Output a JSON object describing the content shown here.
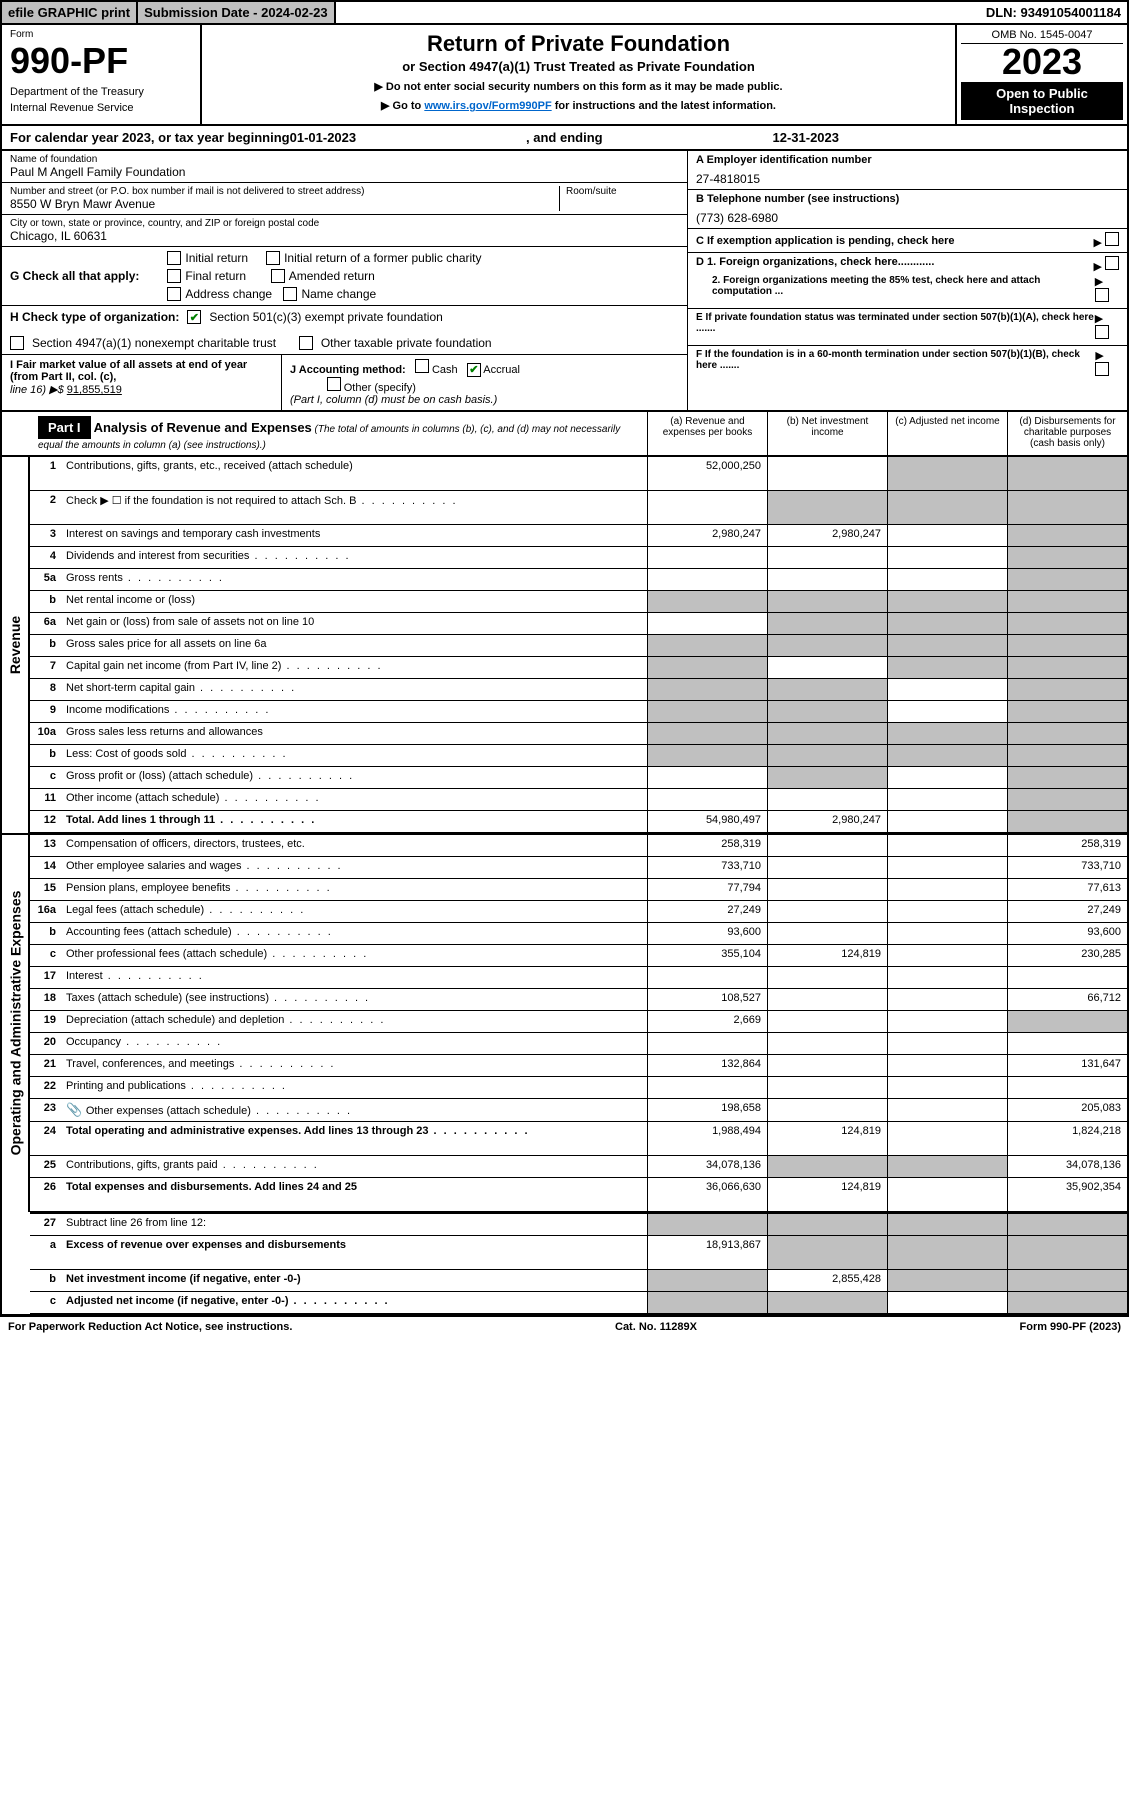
{
  "top": {
    "efile": "efile GRAPHIC print",
    "subdate_label": "Submission Date - ",
    "subdate": "2024-02-23",
    "dln_label": "DLN: ",
    "dln": "93491054001184"
  },
  "header": {
    "form_word": "Form",
    "form_num": "990-PF",
    "dept": "Department of the Treasury",
    "irs": "Internal Revenue Service",
    "title": "Return of Private Foundation",
    "subtitle": "or Section 4947(a)(1) Trust Treated as Private Foundation",
    "note1": "▶ Do not enter social security numbers on this form as it may be made public.",
    "note2_pre": "▶ Go to ",
    "note2_link": "www.irs.gov/Form990PF",
    "note2_post": " for instructions and the latest information.",
    "omb": "OMB No. 1545-0047",
    "year": "2023",
    "open": "Open to Public Inspection"
  },
  "calyear": {
    "pre": "For calendar year 2023, or tax year beginning ",
    "begin": "01-01-2023",
    "mid": ", and ending ",
    "end": "12-31-2023"
  },
  "info": {
    "name_label": "Name of foundation",
    "name": "Paul M Angell Family Foundation",
    "addr_label": "Number and street (or P.O. box number if mail is not delivered to street address)",
    "addr": "8550 W Bryn Mawr Avenue",
    "room_label": "Room/suite",
    "city_label": "City or town, state or province, country, and ZIP or foreign postal code",
    "city": "Chicago, IL  60631",
    "a_label": "A Employer identification number",
    "a_val": "27-4818015",
    "b_label": "B Telephone number (see instructions)",
    "b_val": "(773) 628-6980",
    "c_label": "C If exemption application is pending, check here",
    "d1": "D 1. Foreign organizations, check here............",
    "d2": "2. Foreign organizations meeting the 85% test, check here and attach computation ...",
    "e": "E  If private foundation status was terminated under section 507(b)(1)(A), check here .......",
    "f": "F  If the foundation is in a 60-month termination under section 507(b)(1)(B), check here .......",
    "g_label": "G Check all that apply:",
    "g_opts": [
      "Initial return",
      "Initial return of a former public charity",
      "Final return",
      "Amended return",
      "Address change",
      "Name change"
    ],
    "h_label": "H Check type of organization:",
    "h1": "Section 501(c)(3) exempt private foundation",
    "h2": "Section 4947(a)(1) nonexempt charitable trust",
    "h3": "Other taxable private foundation",
    "i_label": "I Fair market value of all assets at end of year (from Part II, col. (c),",
    "i_line": "line 16) ▶$ ",
    "i_val": "91,855,519",
    "j_label": "J Accounting method:",
    "j_cash": "Cash",
    "j_accrual": "Accrual",
    "j_other": "Other (specify)",
    "j_note": "(Part I, column (d) must be on cash basis.)"
  },
  "part1": {
    "label": "Part I",
    "title": "Analysis of Revenue and Expenses",
    "desc": " (The total of amounts in columns (b), (c), and (d) may not necessarily equal the amounts in column (a) (see instructions).)",
    "col_a": "(a)  Revenue and expenses per books",
    "col_b": "(b)  Net investment income",
    "col_c": "(c)  Adjusted net income",
    "col_d": "(d)  Disbursements for charitable purposes (cash basis only)"
  },
  "sides": {
    "revenue": "Revenue",
    "expenses": "Operating and Administrative Expenses"
  },
  "rows": [
    {
      "n": "1",
      "d": "Contributions, gifts, grants, etc., received (attach schedule)",
      "a": "52,000,250",
      "b": "",
      "c": "g",
      "dd": "g",
      "tall": true
    },
    {
      "n": "2",
      "d": "Check ▶ ☐ if the foundation is not required to attach Sch. B",
      "dots": true,
      "a": "",
      "b": "g",
      "c": "g",
      "dd": "g",
      "tall": true
    },
    {
      "n": "3",
      "d": "Interest on savings and temporary cash investments",
      "a": "2,980,247",
      "b": "2,980,247",
      "c": "",
      "dd": "g"
    },
    {
      "n": "4",
      "d": "Dividends and interest from securities",
      "dots": true,
      "a": "",
      "b": "",
      "c": "",
      "dd": "g"
    },
    {
      "n": "5a",
      "d": "Gross rents",
      "dots": true,
      "a": "",
      "b": "",
      "c": "",
      "dd": "g"
    },
    {
      "n": "b",
      "d": "Net rental income or (loss)",
      "a": "g",
      "b": "g",
      "c": "g",
      "dd": "g"
    },
    {
      "n": "6a",
      "d": "Net gain or (loss) from sale of assets not on line 10",
      "a": "",
      "b": "g",
      "c": "g",
      "dd": "g"
    },
    {
      "n": "b",
      "d": "Gross sales price for all assets on line 6a",
      "a": "g",
      "b": "g",
      "c": "g",
      "dd": "g"
    },
    {
      "n": "7",
      "d": "Capital gain net income (from Part IV, line 2)",
      "dots": true,
      "a": "g",
      "b": "",
      "c": "g",
      "dd": "g"
    },
    {
      "n": "8",
      "d": "Net short-term capital gain",
      "dots": true,
      "a": "g",
      "b": "g",
      "c": "",
      "dd": "g"
    },
    {
      "n": "9",
      "d": "Income modifications",
      "dots": true,
      "a": "g",
      "b": "g",
      "c": "",
      "dd": "g"
    },
    {
      "n": "10a",
      "d": "Gross sales less returns and allowances",
      "a": "g",
      "b": "g",
      "c": "g",
      "dd": "g"
    },
    {
      "n": "b",
      "d": "Less: Cost of goods sold",
      "dots": true,
      "a": "g",
      "b": "g",
      "c": "g",
      "dd": "g"
    },
    {
      "n": "c",
      "d": "Gross profit or (loss) (attach schedule)",
      "dots": true,
      "a": "",
      "b": "g",
      "c": "",
      "dd": "g"
    },
    {
      "n": "11",
      "d": "Other income (attach schedule)",
      "dots": true,
      "a": "",
      "b": "",
      "c": "",
      "dd": "g"
    },
    {
      "n": "12",
      "d": "Total. Add lines 1 through 11",
      "dots": true,
      "bold": true,
      "a": "54,980,497",
      "b": "2,980,247",
      "c": "",
      "dd": "g"
    }
  ],
  "exp_rows": [
    {
      "n": "13",
      "d": "Compensation of officers, directors, trustees, etc.",
      "a": "258,319",
      "b": "",
      "c": "",
      "dd": "258,319"
    },
    {
      "n": "14",
      "d": "Other employee salaries and wages",
      "dots": true,
      "a": "733,710",
      "b": "",
      "c": "",
      "dd": "733,710"
    },
    {
      "n": "15",
      "d": "Pension plans, employee benefits",
      "dots": true,
      "a": "77,794",
      "b": "",
      "c": "",
      "dd": "77,613"
    },
    {
      "n": "16a",
      "d": "Legal fees (attach schedule)",
      "dots": true,
      "a": "27,249",
      "b": "",
      "c": "",
      "dd": "27,249"
    },
    {
      "n": "b",
      "d": "Accounting fees (attach schedule)",
      "dots": true,
      "a": "93,600",
      "b": "",
      "c": "",
      "dd": "93,600"
    },
    {
      "n": "c",
      "d": "Other professional fees (attach schedule)",
      "dots": true,
      "a": "355,104",
      "b": "124,819",
      "c": "",
      "dd": "230,285"
    },
    {
      "n": "17",
      "d": "Interest",
      "dots": true,
      "a": "",
      "b": "",
      "c": "",
      "dd": ""
    },
    {
      "n": "18",
      "d": "Taxes (attach schedule) (see instructions)",
      "dots": true,
      "a": "108,527",
      "b": "",
      "c": "",
      "dd": "66,712"
    },
    {
      "n": "19",
      "d": "Depreciation (attach schedule) and depletion",
      "dots": true,
      "a": "2,669",
      "b": "",
      "c": "",
      "dd": "g"
    },
    {
      "n": "20",
      "d": "Occupancy",
      "dots": true,
      "a": "",
      "b": "",
      "c": "",
      "dd": ""
    },
    {
      "n": "21",
      "d": "Travel, conferences, and meetings",
      "dots": true,
      "a": "132,864",
      "b": "",
      "c": "",
      "dd": "131,647"
    },
    {
      "n": "22",
      "d": "Printing and publications",
      "dots": true,
      "a": "",
      "b": "",
      "c": "",
      "dd": ""
    },
    {
      "n": "23",
      "d": "Other expenses (attach schedule)",
      "dots": true,
      "icon": true,
      "a": "198,658",
      "b": "",
      "c": "",
      "dd": "205,083"
    },
    {
      "n": "24",
      "d": "Total operating and administrative expenses. Add lines 13 through 23",
      "dots": true,
      "bold": true,
      "a": "1,988,494",
      "b": "124,819",
      "c": "",
      "dd": "1,824,218",
      "tall": true
    },
    {
      "n": "25",
      "d": "Contributions, gifts, grants paid",
      "dots": true,
      "a": "34,078,136",
      "b": "g",
      "c": "g",
      "dd": "34,078,136"
    },
    {
      "n": "26",
      "d": "Total expenses and disbursements. Add lines 24 and 25",
      "bold": true,
      "a": "36,066,630",
      "b": "124,819",
      "c": "",
      "dd": "35,902,354",
      "tall": true
    }
  ],
  "bottom_rows": [
    {
      "n": "27",
      "d": "Subtract line 26 from line 12:",
      "a": "g",
      "b": "g",
      "c": "g",
      "dd": "g"
    },
    {
      "n": "a",
      "d": "Excess of revenue over expenses and disbursements",
      "bold": true,
      "a": "18,913,867",
      "b": "g",
      "c": "g",
      "dd": "g",
      "tall": true
    },
    {
      "n": "b",
      "d": "Net investment income (if negative, enter -0-)",
      "bold": true,
      "a": "g",
      "b": "2,855,428",
      "c": "g",
      "dd": "g"
    },
    {
      "n": "c",
      "d": "Adjusted net income (if negative, enter -0-)",
      "dots": true,
      "bold": true,
      "a": "g",
      "b": "g",
      "c": "",
      "dd": "g"
    }
  ],
  "footer": {
    "left": "For Paperwork Reduction Act Notice, see instructions.",
    "mid": "Cat. No. 11289X",
    "right": "Form 990-PF (2023)"
  },
  "colors": {
    "grey": "#c0c0c0",
    "link": "#0066cc",
    "check": "#008000"
  }
}
